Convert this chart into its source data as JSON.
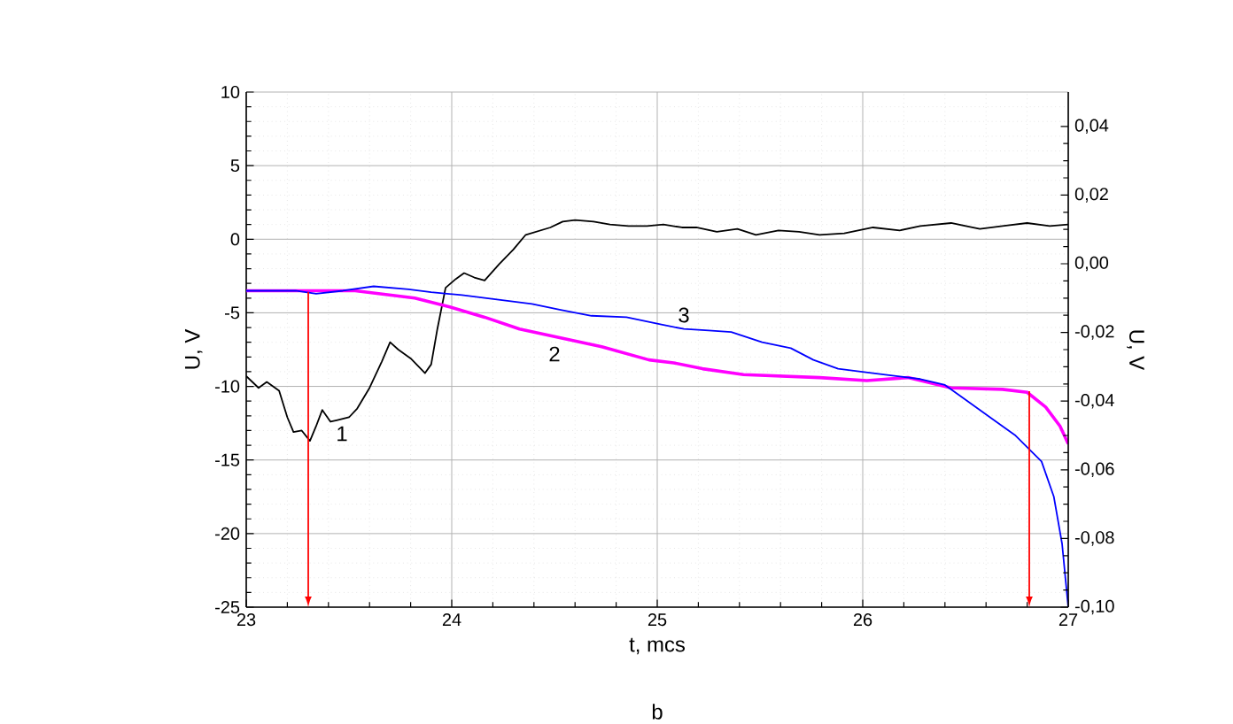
{
  "chart_data": {
    "type": "line",
    "xlabel": "t, mcs",
    "ylabel": "U, V",
    "y2label": "U, V",
    "xlim": [
      23,
      27
    ],
    "xticks": [
      23,
      24,
      25,
      26,
      27
    ],
    "ylim": [
      -25,
      10
    ],
    "yticks": [
      -25,
      -20,
      -15,
      -10,
      -5,
      0,
      5,
      10
    ],
    "y2lim": [
      -0.1,
      0.05
    ],
    "y2ticks": [
      {
        "value": -0.1,
        "label": "-0,10"
      },
      {
        "value": -0.08,
        "label": "-0,08"
      },
      {
        "value": -0.06,
        "label": "-0,06"
      },
      {
        "value": -0.04,
        "label": "-0,04"
      },
      {
        "value": -0.02,
        "label": "-0,02"
      },
      {
        "value": 0,
        "label": "0,00"
      },
      {
        "value": 0.02,
        "label": "0,02"
      },
      {
        "value": 0.04,
        "label": "0,04"
      }
    ],
    "grid": true,
    "marker": "none",
    "line_style": "solid",
    "series": [
      {
        "color": "#000000",
        "x": [
          23.0,
          23.06,
          23.1,
          23.16,
          23.2,
          23.23,
          23.27,
          23.31,
          23.34,
          23.37,
          23.41,
          23.44,
          23.5,
          23.54,
          23.6,
          23.66,
          23.7,
          23.74,
          23.8,
          23.87,
          23.9,
          23.93,
          23.97,
          24.02,
          24.06,
          24.11,
          24.16,
          24.23,
          24.3,
          24.36,
          24.48,
          24.54,
          24.6,
          24.69,
          24.77,
          24.86,
          24.95,
          25.03,
          25.12,
          25.19,
          25.29,
          25.39,
          25.48,
          25.59,
          25.69,
          25.79,
          25.91,
          26.05,
          26.18,
          26.28,
          26.43,
          26.57,
          26.68,
          26.8,
          26.91,
          27.0
        ],
        "values": [
          -9.3,
          -10.1,
          -9.7,
          -10.3,
          -12.1,
          -13.1,
          -13.0,
          -13.7,
          -12.7,
          -11.6,
          -12.4,
          -12.3,
          -12.1,
          -11.5,
          -10.1,
          -8.3,
          -7.0,
          -7.5,
          -8.1,
          -9.1,
          -8.5,
          -6.1,
          -3.3,
          -2.7,
          -2.3,
          -2.6,
          -2.8,
          -1.7,
          -0.7,
          0.3,
          0.8,
          1.2,
          1.3,
          1.2,
          1.0,
          0.9,
          0.9,
          1.0,
          0.8,
          0.8,
          0.5,
          0.7,
          0.3,
          0.6,
          0.5,
          0.3,
          0.4,
          0.8,
          0.6,
          0.9,
          1.1,
          0.7,
          0.9,
          1.1,
          0.9,
          1.0
        ]
      },
      {
        "color": "#ff00ff",
        "x": [
          23.0,
          23.53,
          23.82,
          23.99,
          24.16,
          24.33,
          24.53,
          24.73,
          24.96,
          25.08,
          25.22,
          25.42,
          25.79,
          26.02,
          26.22,
          26.43,
          26.68,
          26.8,
          26.89,
          26.96,
          27.0
        ],
        "values": [
          -3.5,
          -3.5,
          -4.0,
          -4.6,
          -5.3,
          -6.1,
          -6.7,
          -7.3,
          -8.2,
          -8.4,
          -8.8,
          -9.2,
          -9.4,
          -9.6,
          -9.4,
          -10.1,
          -10.2,
          -10.4,
          -11.4,
          -12.7,
          -13.9
        ]
      },
      {
        "color": "#0000ff",
        "x": [
          23.0,
          23.24,
          23.34,
          23.47,
          23.62,
          23.79,
          23.9,
          24.05,
          24.22,
          24.39,
          24.53,
          24.68,
          24.85,
          25.02,
          25.13,
          25.25,
          25.36,
          25.51,
          25.65,
          25.76,
          25.88,
          25.99,
          26.11,
          26.28,
          26.4,
          26.51,
          26.63,
          26.74,
          26.87,
          26.93,
          26.97,
          27.0
        ],
        "values": [
          -3.5,
          -3.5,
          -3.7,
          -3.5,
          -3.2,
          -3.4,
          -3.6,
          -3.8,
          -4.1,
          -4.4,
          -4.8,
          -5.2,
          -5.3,
          -5.8,
          -6.1,
          -6.2,
          -6.3,
          -7.0,
          -7.4,
          -8.2,
          -8.8,
          -9.0,
          -9.2,
          -9.5,
          -9.9,
          -11.0,
          -12.2,
          -13.3,
          -15.1,
          -17.5,
          -20.7,
          -25
        ]
      }
    ],
    "annotations": [
      "1",
      "2",
      "3",
      "b"
    ]
  }
}
